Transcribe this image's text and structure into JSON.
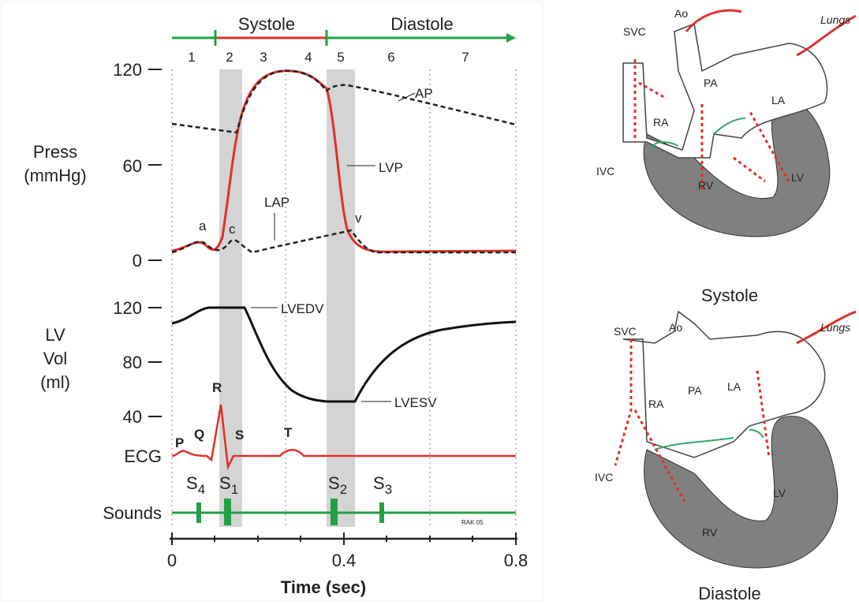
{
  "phases": {
    "systole": "Systole",
    "diastole": "Diastole",
    "numbers": [
      "1",
      "2",
      "3",
      "4",
      "5",
      "6",
      "7"
    ]
  },
  "pressure_panel": {
    "label": [
      "Press",
      "(mmHg)"
    ],
    "ticks": [
      "120",
      "60",
      "0"
    ],
    "annotations": {
      "ap": "AP",
      "lvp": "LVP",
      "lap": "LAP",
      "a": "a",
      "c": "c",
      "v": "v"
    }
  },
  "volume_panel": {
    "label": [
      "LV",
      "Vol",
      "(ml)"
    ],
    "ticks": [
      "120",
      "80",
      "40"
    ],
    "annotations": {
      "lvedv": "LVEDV",
      "lvesv": "LVESV"
    }
  },
  "ecg": {
    "label": "ECG",
    "waves": {
      "p": "P",
      "q": "Q",
      "r": "R",
      "s": "S",
      "t": "T"
    }
  },
  "sounds": {
    "label": "Sounds",
    "items": [
      {
        "letter": "S",
        "index": "4"
      },
      {
        "letter": "S",
        "index": "1"
      },
      {
        "letter": "S",
        "index": "2"
      },
      {
        "letter": "S",
        "index": "3"
      }
    ]
  },
  "x_axis": {
    "ticks": [
      "0",
      "0.4",
      "0.8"
    ],
    "title": "Time (sec)"
  },
  "credit": "RAK 05",
  "heart_systole": {
    "caption": "Systole",
    "labels": {
      "svc": "SVC",
      "ao": "Ao",
      "lungs": "Lungs",
      "pa": "PA",
      "la": "LA",
      "ra": "RA",
      "ivc": "IVC",
      "rv": "RV",
      "lv": "LV"
    }
  },
  "heart_diastole": {
    "caption": "Diastole",
    "labels": {
      "svc": "SVC",
      "ao": "Ao",
      "lungs": "Lungs",
      "pa": "PA",
      "la": "LA",
      "ra": "RA",
      "ivc": "IVC",
      "rv": "RV",
      "lv": "LV"
    }
  }
}
